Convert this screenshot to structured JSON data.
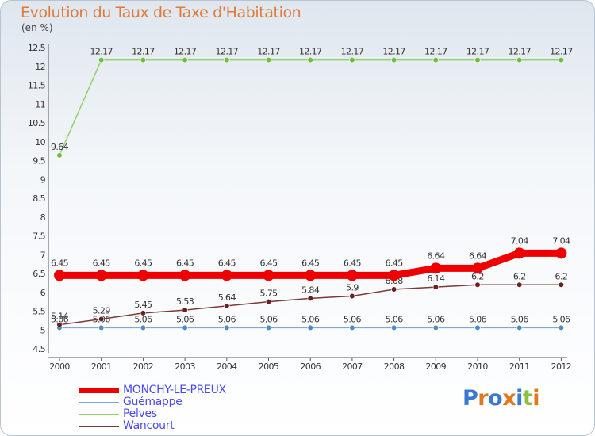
{
  "chart_data": {
    "type": "line",
    "title": "Evolution du Taux de Taxe d'Habitation",
    "ylabel": "(en %)",
    "categories": [
      "2000",
      "2001",
      "2002",
      "2003",
      "2004",
      "2005",
      "2006",
      "2007",
      "2008",
      "2009",
      "2010",
      "2011",
      "2012"
    ],
    "yticks": [
      "4.5",
      "5",
      "5.5",
      "6",
      "6.5",
      "7",
      "7.5",
      "8",
      "8.5",
      "9",
      "9.5",
      "10",
      "10.5",
      "11",
      "11.5",
      "12",
      "12.5"
    ],
    "ylim": [
      4.5,
      12.5
    ],
    "series": [
      {
        "name": "Pelves",
        "color": "#8ed26a",
        "marker": "#6cbf3c",
        "values": [
          9.64,
          12.17,
          12.17,
          12.17,
          12.17,
          12.17,
          12.17,
          12.17,
          12.17,
          12.17,
          12.17,
          12.17,
          12.17
        ],
        "labels": [
          "9.64",
          "12.17",
          "12.17",
          "12.17",
          "12.17",
          "12.17",
          "12.17",
          "12.17",
          "12.17",
          "12.17",
          "12.17",
          "12.17",
          "12.17"
        ]
      },
      {
        "name": "Guémappe",
        "color": "#7fa9cf",
        "marker": "#4f8ac0",
        "values": [
          5.06,
          5.06,
          5.06,
          5.06,
          5.06,
          5.06,
          5.06,
          5.06,
          5.06,
          5.06,
          5.06,
          5.06,
          5.06
        ],
        "labels": [
          "5.06",
          "5.06",
          "5.06",
          "5.06",
          "5.06",
          "5.06",
          "5.06",
          "5.06",
          "5.06",
          "5.06",
          "5.06",
          "5.06",
          "5.06"
        ]
      },
      {
        "name": "Wancourt",
        "color": "#7a3a3a",
        "marker": "#6a2020",
        "values": [
          5.14,
          5.29,
          5.45,
          5.53,
          5.64,
          5.75,
          5.84,
          5.9,
          6.08,
          6.14,
          6.2,
          6.2,
          6.2
        ],
        "labels": [
          "5.14",
          "5.29",
          "5.45",
          "5.53",
          "5.64",
          "5.75",
          "5.84",
          "5.9",
          "6.08",
          "6.14",
          "6.2",
          "6.2",
          "6.2"
        ]
      },
      {
        "name": "MONCHY-LE-PREUX",
        "color": "#ee0000",
        "marker": "#ee0000",
        "values": [
          6.45,
          6.45,
          6.45,
          6.45,
          6.45,
          6.45,
          6.45,
          6.45,
          6.45,
          6.64,
          6.64,
          7.04,
          7.04
        ],
        "labels": [
          "6.45",
          "6.45",
          "6.45",
          "6.45",
          "6.45",
          "6.45",
          "6.45",
          "6.45",
          "6.45",
          "6.64",
          "6.64",
          "7.04",
          "7.04"
        ]
      }
    ]
  },
  "legend": [
    {
      "name": "MONCHY-LE-PREUX",
      "color": "#ee0000"
    },
    {
      "name": "Guémappe",
      "color": "#7fa9cf"
    },
    {
      "name": "Pelves",
      "color": "#8ed26a"
    },
    {
      "name": "Wancourt",
      "color": "#7a3a3a"
    }
  ],
  "logo": {
    "letters": [
      "P",
      "r",
      "o",
      "x",
      "i",
      "t",
      "i"
    ],
    "colors": [
      "#3b78d0",
      "#e07820",
      "#3b78d0",
      "#e07820",
      "#3b78d0",
      "#8cc040",
      "#e07820"
    ]
  }
}
